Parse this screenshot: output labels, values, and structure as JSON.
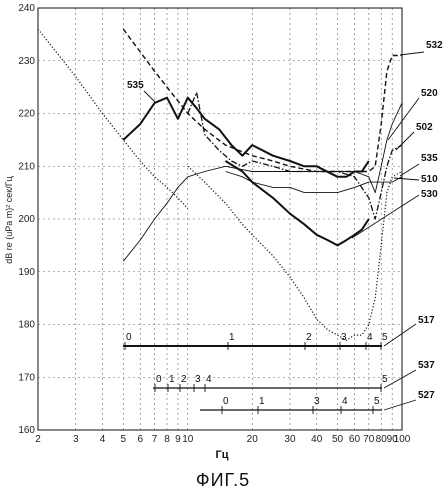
{
  "figure_caption": "ФИГ.5",
  "chart_data": {
    "type": "line",
    "title": "",
    "xlabel": "Гц",
    "ylabel": "dB re (uPa m)² сек/Гц",
    "x_scale": "log",
    "xlim": [
      2,
      100
    ],
    "ylim": [
      160,
      240
    ],
    "x_ticks": [
      2,
      3,
      4,
      5,
      6,
      7,
      8,
      9,
      10,
      20,
      30,
      40,
      50,
      60,
      70,
      80,
      90,
      100
    ],
    "x_tick_labels": [
      "2",
      "3",
      "4",
      "5",
      "6",
      "7",
      "8",
      "9",
      "10",
      "20",
      "30",
      "40",
      "50",
      "60",
      "70",
      "80",
      "90",
      "100"
    ],
    "y_ticks": [
      160,
      170,
      180,
      190,
      200,
      210,
      220,
      230,
      240
    ],
    "y_tick_labels": [
      "160",
      "170",
      "180",
      "190",
      "200",
      "210",
      "220",
      "230",
      "240"
    ],
    "grid": true,
    "series": [
      {
        "name": "532",
        "style": "dashed",
        "x": [
          5,
          7,
          10,
          12,
          15,
          20,
          25,
          30,
          40,
          50,
          60,
          65,
          70,
          75,
          80,
          85,
          90,
          100
        ],
        "y": [
          236,
          228,
          220,
          217,
          214,
          212,
          211,
          210,
          209,
          209,
          209,
          209,
          209,
          210,
          218,
          228,
          231,
          231
        ]
      },
      {
        "name": "520",
        "style": "solid-bold",
        "x": [
          5,
          6,
          7,
          8,
          9,
          10,
          11,
          12,
          14,
          16,
          18,
          20,
          25,
          30,
          35,
          40,
          50,
          55,
          60,
          65,
          70
        ],
        "y": [
          215,
          218,
          222,
          223,
          219,
          223,
          221,
          219,
          217,
          214,
          212,
          214,
          212,
          211,
          210,
          210,
          208,
          208,
          209,
          209,
          211
        ]
      },
      {
        "name": "502",
        "style": "dash-dot",
        "x": [
          10,
          11,
          12,
          14,
          16,
          18,
          20,
          25,
          30,
          40,
          50,
          60,
          70,
          75,
          80,
          85,
          90,
          100
        ],
        "y": [
          220,
          224,
          216,
          213,
          211,
          210,
          211,
          210,
          209,
          209,
          209,
          208,
          204,
          200,
          205,
          210,
          213,
          214
        ]
      },
      {
        "name": "535",
        "style": "thin",
        "x": [
          5,
          6,
          7,
          8,
          9,
          10,
          12,
          15,
          20,
          25,
          30,
          35,
          40,
          50,
          60,
          70,
          75,
          80,
          85,
          90,
          100
        ],
        "y": [
          192,
          196,
          200,
          203,
          206,
          208,
          209,
          210,
          209,
          209,
          209,
          209,
          209,
          209,
          209,
          208,
          205,
          210,
          215,
          218,
          222
        ]
      },
      {
        "name": "510",
        "style": "thin",
        "x": [
          15,
          18,
          20,
          25,
          30,
          35,
          40,
          50,
          60,
          70,
          80,
          90,
          100
        ],
        "y": [
          209,
          208,
          207,
          206,
          206,
          205,
          205,
          205,
          206,
          207,
          207,
          207,
          208
        ]
      },
      {
        "name": "530",
        "style": "solid-bold",
        "x": [
          15,
          18,
          20,
          25,
          30,
          35,
          40,
          45,
          50,
          55,
          60,
          65,
          70
        ],
        "y": [
          211,
          209,
          207,
          204,
          201,
          199,
          197,
          196,
          195,
          196,
          197,
          198,
          200
        ]
      },
      {
        "name": "",
        "style": "dotted",
        "x": [
          2,
          3,
          4,
          5,
          6,
          7,
          8,
          9,
          10
        ],
        "y": [
          236,
          227,
          220,
          215,
          211,
          208,
          206,
          204,
          202
        ]
      },
      {
        "name": "517",
        "style": "dotted",
        "x": [
          10,
          12,
          15,
          18,
          20,
          25,
          30,
          35,
          40,
          45,
          50,
          55,
          60,
          65,
          70,
          75,
          80,
          85,
          90,
          100
        ],
        "y": [
          210,
          207,
          203,
          199,
          197,
          193,
          189,
          185,
          181,
          179,
          178,
          177,
          178,
          178,
          180,
          185,
          195,
          205,
          208,
          209
        ]
      }
    ],
    "callouts": [
      "532",
      "535",
      "520",
      "502",
      "535",
      "510",
      "530",
      "517",
      "537",
      "527"
    ],
    "secondary_scales": [
      {
        "callout": "517",
        "labels": [
          "0",
          "1",
          "2",
          "3",
          "4",
          "5"
        ]
      },
      {
        "callout": "537",
        "labels": [
          "0",
          "1",
          "2",
          "3",
          "4",
          "5"
        ]
      },
      {
        "callout": "527",
        "labels": [
          "0",
          "1",
          "3",
          "4",
          "5"
        ]
      }
    ]
  }
}
